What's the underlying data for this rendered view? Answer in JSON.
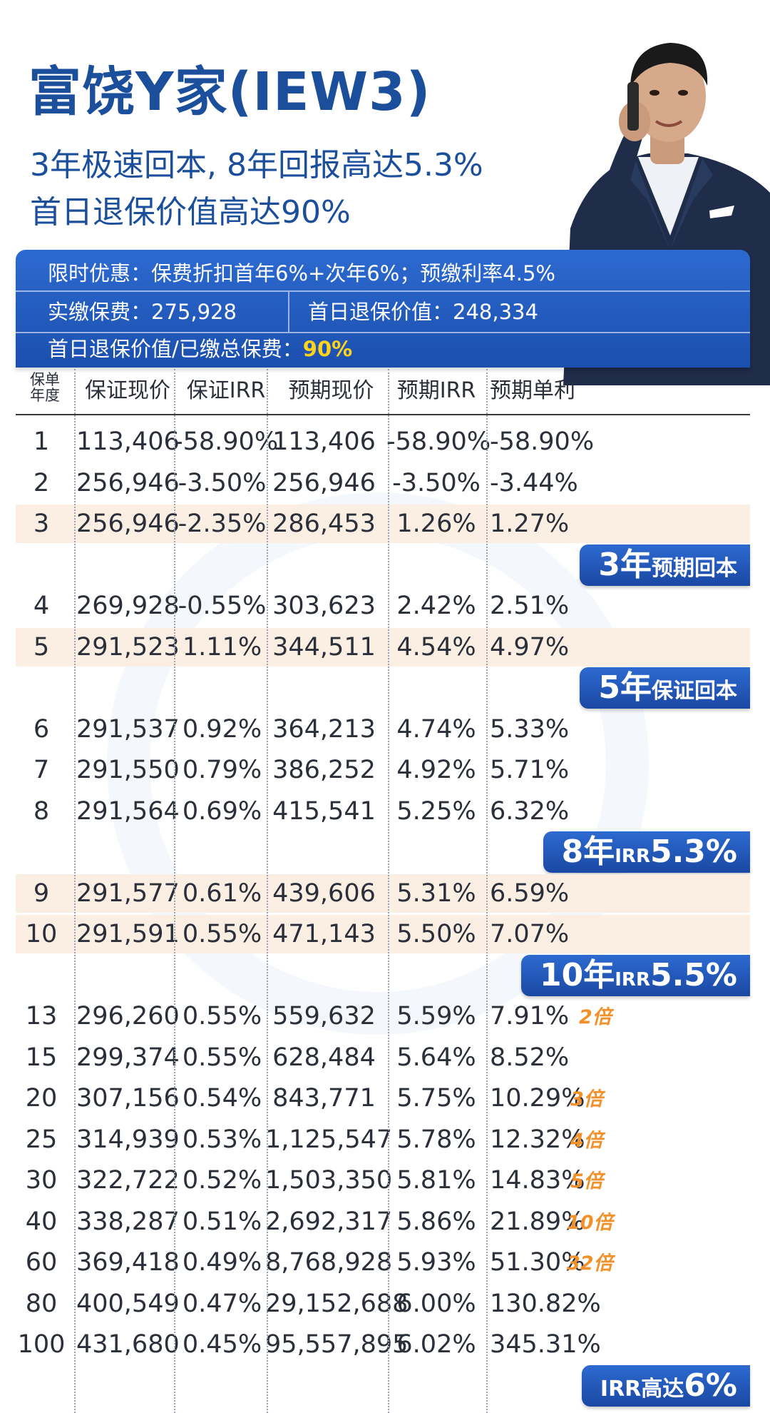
{
  "header": {
    "title": "富饶Y家(IEW3)",
    "subtitle1": "3年极速回本, 8年回报高达5.3%",
    "subtitle2": "首日退保价值高达90%"
  },
  "banner": {
    "promo": "限时优惠：保费折扣首年6%+次年6%；预缴利率4.5%",
    "paid_label": "实缴保费：",
    "paid_value": "275,928",
    "surrender_label": "首日退保价值：",
    "surrender_value": "248,334",
    "ratio_label": "首日退保价值/已缴总保费：",
    "ratio_value": "90%"
  },
  "table": {
    "col0_header_line1": "保单",
    "col0_header_line2": "年度",
    "headers": [
      "保证现价",
      "保证IRR",
      "预期现价",
      "预期IRR",
      "预期单利"
    ],
    "rows": [
      [
        "1",
        "113,406",
        "-58.90%",
        "113,406",
        "-58.90%",
        "-58.90%"
      ],
      [
        "2",
        "256,946",
        "-3.50%",
        "256,946",
        "-3.50%",
        "-3.44%"
      ],
      [
        "3",
        "256,946",
        "-2.35%",
        "286,453",
        "1.26%",
        "1.27%"
      ],
      [
        "4",
        "269,928",
        "-0.55%",
        "303,623",
        "2.42%",
        "2.51%"
      ],
      [
        "5",
        "291,523",
        "1.11%",
        "344,511",
        "4.54%",
        "4.97%"
      ],
      [
        "6",
        "291,537",
        "0.92%",
        "364,213",
        "4.74%",
        "5.33%"
      ],
      [
        "7",
        "291,550",
        "0.79%",
        "386,252",
        "4.92%",
        "5.71%"
      ],
      [
        "8",
        "291,564",
        "0.69%",
        "415,541",
        "5.25%",
        "6.32%"
      ],
      [
        "9",
        "291,577",
        "0.61%",
        "439,606",
        "5.31%",
        "6.59%"
      ],
      [
        "10",
        "291,591",
        "0.55%",
        "471,143",
        "5.50%",
        "7.07%"
      ],
      [
        "13",
        "296,260",
        "0.55%",
        "559,632",
        "5.59%",
        "7.91%"
      ],
      [
        "15",
        "299,374",
        "0.55%",
        "628,484",
        "5.64%",
        "8.52%"
      ],
      [
        "20",
        "307,156",
        "0.54%",
        "843,771",
        "5.75%",
        "10.29%"
      ],
      [
        "25",
        "314,939",
        "0.53%",
        "1,125,547",
        "5.78%",
        "12.32%"
      ],
      [
        "30",
        "322,722",
        "0.52%",
        "1,503,350",
        "5.81%",
        "14.83%"
      ],
      [
        "40",
        "338,287",
        "0.51%",
        "2,692,317",
        "5.86%",
        "21.89%"
      ],
      [
        "60",
        "369,418",
        "0.49%",
        "8,768,928",
        "5.93%",
        "51.30%"
      ],
      [
        "80",
        "400,549",
        "0.47%",
        "29,152,688",
        "6.00%",
        "130.82%"
      ],
      [
        "100",
        "431,680",
        "0.45%",
        "95,557,895",
        "6.02%",
        "345.31%"
      ]
    ],
    "multipliers": {
      "13": "2倍",
      "20": "3倍",
      "25": "4倍",
      "30": "5倍",
      "40": "10倍",
      "60": "32倍"
    },
    "tags": [
      {
        "after": "3",
        "parts": [
          [
            "big",
            "3年"
          ],
          [
            "",
            "预期回本"
          ]
        ]
      },
      {
        "after": "5",
        "parts": [
          [
            "big",
            "5年"
          ],
          [
            "",
            "保证回本"
          ]
        ]
      },
      {
        "after": "8",
        "parts": [
          [
            "big",
            "8年"
          ],
          [
            "sm",
            "IRR"
          ],
          [
            "big",
            "5.3%"
          ]
        ]
      },
      {
        "after": "10",
        "parts": [
          [
            "big",
            "10年"
          ],
          [
            "sm",
            "IRR"
          ],
          [
            "big",
            "5.5%"
          ]
        ]
      },
      {
        "after": "100",
        "parts": [
          [
            "",
            "IRR高达"
          ],
          [
            "big",
            "6%"
          ]
        ]
      }
    ],
    "highlight_rows": [
      "3",
      "5",
      "9",
      "10"
    ]
  },
  "colors": {
    "brand_blue": "#1b4f9c",
    "banner_blue": "#2d6ad0",
    "highlight_yellow": "#ffd21c",
    "band_peach": "#fbefe3",
    "multiplier_orange": "#f2912a"
  }
}
